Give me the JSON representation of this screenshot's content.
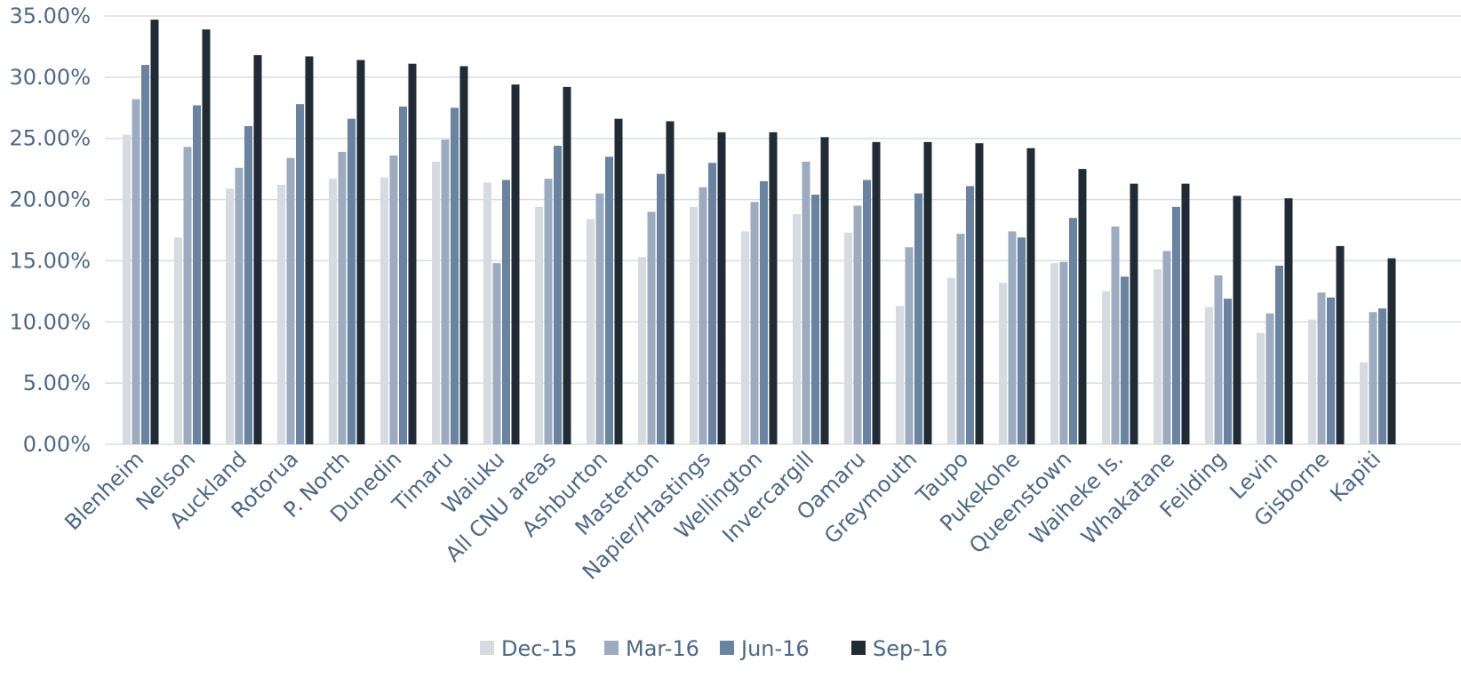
{
  "chart_data": {
    "type": "bar",
    "title": "",
    "xlabel": "",
    "ylabel": "",
    "ylim": [
      0,
      35
    ],
    "yticks": [
      0,
      5,
      10,
      15,
      20,
      25,
      30,
      35
    ],
    "ytick_labels": [
      "0.00%",
      "5.00%",
      "10.00%",
      "15.00%",
      "20.00%",
      "25.00%",
      "30.00%",
      "35.00%"
    ],
    "grid": true,
    "legend_position": "bottom",
    "categories": [
      "Blenheim",
      "Nelson",
      "Auckland",
      "Rotorua",
      "P. North",
      "Dunedin",
      "Timaru",
      "Waiuku",
      "All CNU areas",
      "Ashburton",
      "Masterton",
      "Napier/Hastings",
      "Wellington",
      "Invercargill",
      "Oamaru",
      "Greymouth",
      "Taupo",
      "Pukekohe",
      "Queenstown",
      "Waiheke Is.",
      "Whakatane",
      "Feilding",
      "Levin",
      "Gisborne",
      "Kapiti"
    ],
    "series": [
      {
        "name": "Dec-15",
        "color": "#d6dbe2",
        "values": [
          25.3,
          16.9,
          20.9,
          21.2,
          21.7,
          21.8,
          23.1,
          21.4,
          19.4,
          18.4,
          15.3,
          19.4,
          17.4,
          18.8,
          17.3,
          11.3,
          13.6,
          13.2,
          14.8,
          12.5,
          14.3,
          11.2,
          9.1,
          10.2,
          6.7
        ]
      },
      {
        "name": "Mar-16",
        "color": "#9cabbf",
        "values": [
          28.2,
          24.3,
          22.6,
          23.4,
          23.9,
          23.6,
          24.9,
          14.8,
          21.7,
          20.5,
          19.0,
          21.0,
          19.8,
          23.1,
          19.5,
          16.1,
          17.2,
          17.4,
          14.9,
          17.8,
          15.8,
          13.8,
          10.7,
          12.4,
          10.8
        ]
      },
      {
        "name": "Jun-16",
        "color": "#6a83a0",
        "values": [
          31.0,
          27.7,
          26.0,
          27.8,
          26.6,
          27.6,
          27.5,
          21.6,
          24.4,
          23.5,
          22.1,
          23.0,
          21.5,
          20.4,
          21.6,
          20.5,
          21.1,
          16.9,
          18.5,
          13.7,
          19.4,
          11.9,
          14.6,
          12.0,
          11.1
        ]
      },
      {
        "name": "Sep-16",
        "color": "#212b36",
        "values": [
          34.7,
          33.9,
          31.8,
          31.7,
          31.4,
          31.1,
          30.9,
          29.4,
          29.2,
          26.6,
          26.4,
          25.5,
          25.5,
          25.1,
          24.7,
          24.7,
          24.6,
          24.2,
          22.5,
          21.3,
          21.3,
          20.3,
          20.1,
          16.2,
          15.2
        ]
      }
    ]
  }
}
